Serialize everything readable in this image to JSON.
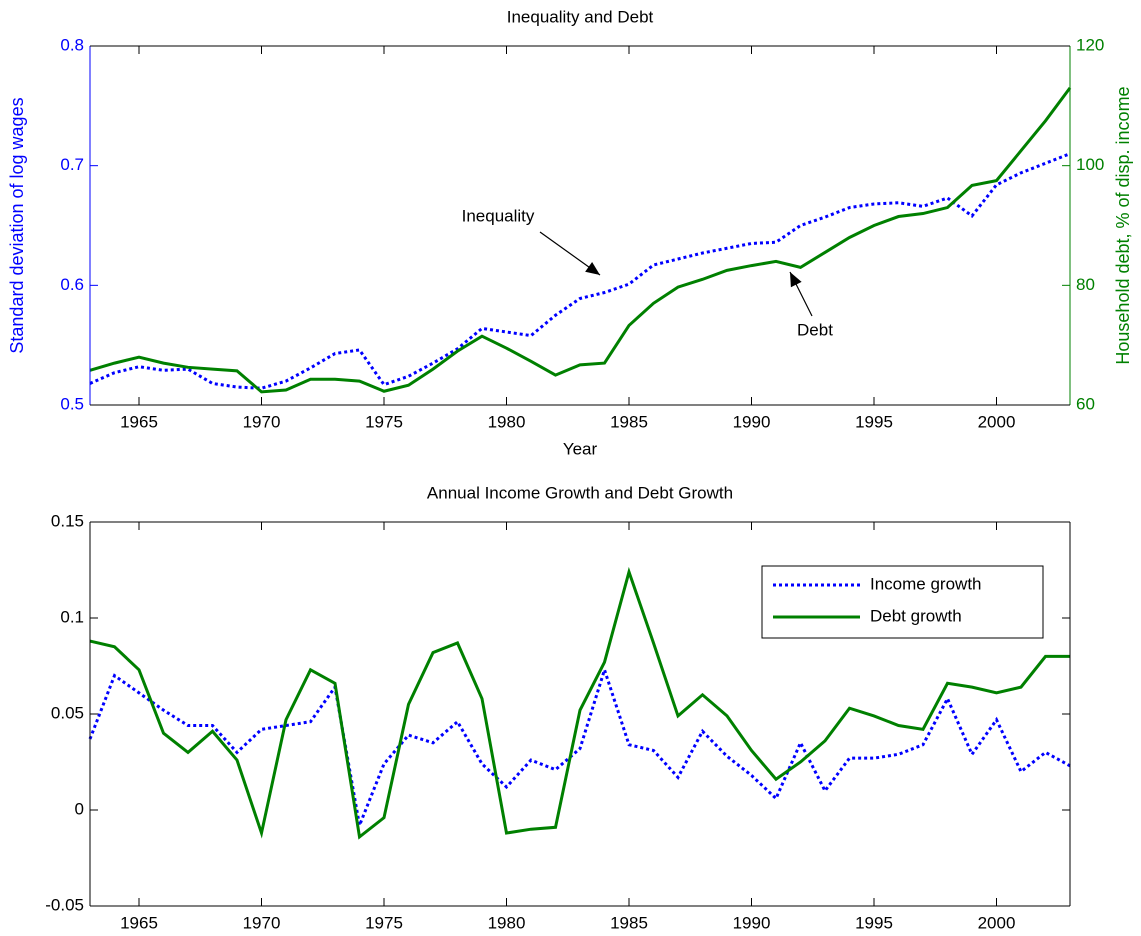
{
  "chart_data": [
    {
      "type": "line",
      "title": "Inequality and Debt",
      "xlabel": "Year",
      "ylabel": "Standard deviation of log wages",
      "y2label": "Household debt, % of disp. income",
      "x": [
        1963,
        1964,
        1965,
        1966,
        1967,
        1968,
        1969,
        1970,
        1971,
        1972,
        1973,
        1974,
        1975,
        1976,
        1977,
        1978,
        1979,
        1980,
        1981,
        1982,
        1983,
        1984,
        1985,
        1986,
        1987,
        1988,
        1989,
        1990,
        1991,
        1992,
        1993,
        1994,
        1995,
        1996,
        1997,
        1998,
        1999,
        2000,
        2001,
        2002,
        2003
      ],
      "xlim": [
        1963,
        2003
      ],
      "xticks": [
        1965,
        1970,
        1975,
        1980,
        1985,
        1990,
        1995,
        2000
      ],
      "ylim": [
        0.5,
        0.8
      ],
      "yticks": [
        0.5,
        0.6,
        0.7,
        0.8
      ],
      "y2lim": [
        60,
        120
      ],
      "y2ticks": [
        60,
        80,
        100,
        120
      ],
      "y_color": "#0000ff",
      "y2_color": "#008000",
      "series": [
        {
          "name": "Inequality",
          "color": "#0000ff",
          "style": "dotted",
          "values": [
            0.518,
            0.527,
            0.532,
            0.529,
            0.53,
            0.518,
            0.515,
            0.514,
            0.52,
            0.531,
            0.543,
            0.546,
            0.517,
            0.524,
            0.535,
            0.547,
            0.564,
            0.561,
            0.558,
            0.575,
            0.589,
            0.594,
            0.601,
            0.617,
            0.622,
            0.627,
            0.631,
            0.635,
            0.636,
            0.65,
            0.657,
            0.665,
            0.668,
            0.669,
            0.666,
            0.673,
            0.658,
            0.684,
            0.694,
            0.702,
            0.71
          ]
        },
        {
          "name": "Debt",
          "color": "#008000",
          "style": "solid",
          "axis": "y2",
          "values": [
            65.8,
            67.0,
            68.0,
            67.0,
            66.3,
            66.0,
            65.7,
            62.2,
            62.5,
            64.3,
            64.3,
            64.0,
            62.3,
            63.3,
            66.0,
            69.0,
            71.5,
            69.5,
            67.3,
            65.0,
            66.7,
            67.0,
            73.3,
            77.0,
            79.7,
            81.0,
            82.5,
            83.3,
            84.0,
            83.0,
            85.5,
            88.0,
            90.0,
            91.5,
            92.0,
            93.0,
            96.7,
            97.5,
            102.5,
            107.5,
            113.0
          ]
        }
      ],
      "annotations": [
        {
          "text": "Inequality"
        },
        {
          "text": "Debt"
        }
      ]
    },
    {
      "type": "line",
      "title": "Annual Income Growth and Debt Growth",
      "x": [
        1963,
        1964,
        1965,
        1966,
        1967,
        1968,
        1969,
        1970,
        1971,
        1972,
        1973,
        1974,
        1975,
        1976,
        1977,
        1978,
        1979,
        1980,
        1981,
        1982,
        1983,
        1984,
        1985,
        1986,
        1987,
        1988,
        1989,
        1990,
        1991,
        1992,
        1993,
        1994,
        1995,
        1996,
        1997,
        1998,
        1999,
        2000,
        2001,
        2002,
        2003
      ],
      "xlim": [
        1963,
        2003
      ],
      "xticks": [
        1965,
        1970,
        1975,
        1980,
        1985,
        1990,
        1995,
        2000
      ],
      "ylim": [
        -0.05,
        0.15
      ],
      "yticks": [
        -0.05,
        0,
        0.05,
        0.1,
        0.15
      ],
      "legend": "upper right",
      "series": [
        {
          "name": "Income growth",
          "color": "#0000ff",
          "style": "dotted",
          "values": [
            0.037,
            0.07,
            0.061,
            0.052,
            0.044,
            0.044,
            0.03,
            0.042,
            0.044,
            0.046,
            0.064,
            -0.008,
            0.024,
            0.039,
            0.035,
            0.046,
            0.024,
            0.012,
            0.026,
            0.021,
            0.032,
            0.073,
            0.034,
            0.031,
            0.017,
            0.041,
            0.028,
            0.018,
            0.006,
            0.035,
            0.01,
            0.027,
            0.027,
            0.029,
            0.034,
            0.058,
            0.029,
            0.047,
            0.02,
            0.03,
            0.023
          ]
        },
        {
          "name": "Debt growth",
          "color": "#008000",
          "style": "solid",
          "values": [
            0.088,
            0.085,
            0.073,
            0.04,
            0.03,
            0.041,
            0.026,
            -0.012,
            0.047,
            0.073,
            0.066,
            -0.014,
            -0.004,
            0.055,
            0.082,
            0.087,
            0.058,
            -0.012,
            -0.01,
            -0.009,
            0.052,
            0.077,
            0.124,
            0.087,
            0.049,
            0.06,
            0.049,
            0.031,
            0.016,
            0.025,
            0.036,
            0.053,
            0.049,
            0.044,
            0.042,
            0.066,
            0.064,
            0.061,
            0.064,
            0.08,
            0.08
          ]
        }
      ]
    }
  ]
}
